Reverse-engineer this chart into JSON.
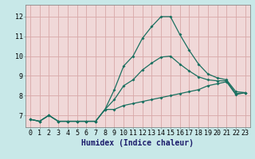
{
  "title": "",
  "xlabel": "Humidex (Indice chaleur)",
  "bg_outer": "#c8e8e8",
  "bg_inner": "#f0d8d8",
  "grid_color": "#d8a8a8",
  "line_color": "#1a7060",
  "hours": [
    0,
    1,
    2,
    3,
    4,
    5,
    6,
    7,
    8,
    9,
    10,
    11,
    12,
    13,
    14,
    15,
    16,
    17,
    18,
    19,
    20,
    21,
    22,
    23
  ],
  "line_max": [
    6.8,
    6.7,
    7.0,
    6.7,
    6.7,
    6.7,
    6.7,
    6.7,
    7.3,
    8.3,
    9.5,
    10.0,
    10.9,
    11.5,
    12.0,
    12.0,
    11.1,
    10.3,
    9.6,
    9.1,
    8.9,
    8.8,
    8.2,
    8.15
  ],
  "line_min": [
    6.8,
    6.7,
    7.0,
    6.7,
    6.7,
    6.7,
    6.7,
    6.7,
    7.3,
    7.3,
    7.5,
    7.6,
    7.7,
    7.8,
    7.9,
    8.0,
    8.1,
    8.2,
    8.3,
    8.5,
    8.6,
    8.7,
    8.05,
    8.15
  ],
  "line_mid": [
    6.8,
    6.7,
    7.0,
    6.7,
    6.7,
    6.7,
    6.7,
    6.7,
    7.3,
    7.8,
    8.5,
    8.8,
    9.3,
    9.65,
    9.95,
    10.0,
    9.6,
    9.25,
    8.95,
    8.8,
    8.75,
    8.75,
    8.1,
    8.15
  ],
  "ylim": [
    6.4,
    12.6
  ],
  "xlim": [
    -0.5,
    23.5
  ],
  "yticks": [
    7,
    8,
    9,
    10,
    11,
    12
  ],
  "xticks": [
    0,
    1,
    2,
    3,
    4,
    5,
    6,
    7,
    8,
    9,
    10,
    11,
    12,
    13,
    14,
    15,
    16,
    17,
    18,
    19,
    20,
    21,
    22,
    23
  ],
  "fontsize_label": 7,
  "fontsize_tick": 6,
  "marker_size": 2.0,
  "line_width": 0.9
}
